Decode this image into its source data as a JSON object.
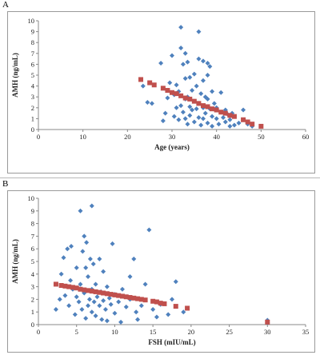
{
  "chart_data": [
    {
      "panel_label": "A",
      "type": "scatter",
      "xlabel": "Age (years)",
      "ylabel": "AMH (ng/mL)",
      "xlim": [
        0,
        60
      ],
      "ylim": [
        0,
        10
      ],
      "x_ticks": [
        0,
        10,
        20,
        30,
        40,
        50,
        60
      ],
      "y_ticks": [
        0,
        1,
        2,
        3,
        4,
        5,
        6,
        7,
        8,
        9,
        10
      ],
      "grid": false,
      "legend": "none",
      "series": [
        {
          "marker": "diamond",
          "color": "#4f81bd",
          "points": [
            [
              23.5,
              4.0
            ],
            [
              24.5,
              2.5
            ],
            [
              25.5,
              2.4
            ],
            [
              27.5,
              6.1
            ],
            [
              28,
              0.8
            ],
            [
              28.5,
              1.5
            ],
            [
              29,
              2.9
            ],
            [
              29.5,
              4.3
            ],
            [
              30,
              6.8
            ],
            [
              30.5,
              3.2
            ],
            [
              30.5,
              1.2
            ],
            [
              31,
              2.0
            ],
            [
              31,
              4.1
            ],
            [
              31.5,
              3.5
            ],
            [
              31.5,
              0.9
            ],
            [
              32,
              9.4
            ],
            [
              32,
              7.5
            ],
            [
              32,
              2.2
            ],
            [
              32.5,
              6.0
            ],
            [
              32.5,
              1.6
            ],
            [
              33,
              7.0
            ],
            [
              33,
              4.7
            ],
            [
              33,
              2.8
            ],
            [
              33,
              1.0
            ],
            [
              33.5,
              6.2
            ],
            [
              33.5,
              3.0
            ],
            [
              33.5,
              0.5
            ],
            [
              34,
              4.8
            ],
            [
              34,
              2.1
            ],
            [
              34,
              1.3
            ],
            [
              34.5,
              3.6
            ],
            [
              34.5,
              1.8
            ],
            [
              35,
              5.1
            ],
            [
              35,
              2.6
            ],
            [
              35,
              0.7
            ],
            [
              35.5,
              4.0
            ],
            [
              35.5,
              1.9
            ],
            [
              36,
              9.0
            ],
            [
              36,
              6.5
            ],
            [
              36,
              2.4
            ],
            [
              36,
              1.1
            ],
            [
              36.5,
              3.3
            ],
            [
              36.5,
              0.4
            ],
            [
              37,
              6.3
            ],
            [
              37,
              4.5
            ],
            [
              37,
              2.0
            ],
            [
              37,
              1.0
            ],
            [
              37.5,
              3.0
            ],
            [
              37.5,
              1.5
            ],
            [
              38,
              6.1
            ],
            [
              38,
              5.0
            ],
            [
              38,
              2.8
            ],
            [
              38,
              0.6
            ],
            [
              38.5,
              5.8
            ],
            [
              38.5,
              1.9
            ],
            [
              39,
              3.5
            ],
            [
              39,
              1.2
            ],
            [
              39,
              0.3
            ],
            [
              39.5,
              2.4
            ],
            [
              40,
              2.0
            ],
            [
              40,
              1.0
            ],
            [
              40.5,
              0.5
            ],
            [
              41,
              3.4
            ],
            [
              41,
              1.6
            ],
            [
              41.5,
              1.1
            ],
            [
              42,
              1.8
            ],
            [
              42,
              0.7
            ],
            [
              42.5,
              1.4
            ],
            [
              43,
              0.9
            ],
            [
              43,
              0.3
            ],
            [
              43.5,
              1.5
            ],
            [
              44,
              1.2
            ],
            [
              44,
              0.4
            ],
            [
              45,
              0.6
            ],
            [
              46,
              1.8
            ],
            [
              47,
              0.5
            ],
            [
              48,
              0.3
            ]
          ]
        },
        {
          "marker": "square",
          "color": "#c0504d",
          "points": [
            [
              23,
              4.6
            ],
            [
              25,
              4.3
            ],
            [
              26,
              4.1
            ],
            [
              28,
              3.8
            ],
            [
              29,
              3.6
            ],
            [
              30,
              3.4
            ],
            [
              31,
              3.3
            ],
            [
              32,
              3.1
            ],
            [
              33,
              2.9
            ],
            [
              34,
              2.8
            ],
            [
              35,
              2.6
            ],
            [
              36,
              2.4
            ],
            [
              37,
              2.2
            ],
            [
              38,
              2.1
            ],
            [
              39,
              1.9
            ],
            [
              40,
              1.8
            ],
            [
              41,
              1.6
            ],
            [
              42,
              1.5
            ],
            [
              43,
              1.3
            ],
            [
              44,
              1.2
            ],
            [
              46,
              0.9
            ],
            [
              47,
              0.7
            ],
            [
              48,
              0.5
            ],
            [
              50,
              0.3
            ]
          ]
        }
      ]
    },
    {
      "panel_label": "B",
      "type": "scatter",
      "xlabel": "FSH (mIU/mL)",
      "ylabel": "AMH (ng/mL)",
      "xlim": [
        0,
        35
      ],
      "ylim": [
        0,
        10
      ],
      "x_ticks": [
        0,
        5,
        10,
        15,
        20,
        25,
        30,
        35
      ],
      "y_ticks": [
        0,
        1,
        2,
        3,
        4,
        5,
        6,
        7,
        8,
        9,
        10
      ],
      "grid": false,
      "legend": "none",
      "series": [
        {
          "marker": "diamond",
          "color": "#4f81bd",
          "points": [
            [
              2.3,
              1.2
            ],
            [
              2.8,
              2.0
            ],
            [
              3.0,
              4.0
            ],
            [
              3.3,
              5.3
            ],
            [
              3.5,
              2.3
            ],
            [
              3.8,
              6.0
            ],
            [
              4.0,
              1.5
            ],
            [
              4.2,
              3.5
            ],
            [
              4.3,
              6.2
            ],
            [
              4.5,
              2.8
            ],
            [
              4.8,
              0.8
            ],
            [
              5.0,
              2.2
            ],
            [
              5.0,
              4.5
            ],
            [
              5.3,
              1.8
            ],
            [
              5.5,
              3.2
            ],
            [
              5.5,
              9.0
            ],
            [
              5.7,
              1.2
            ],
            [
              5.8,
              5.8
            ],
            [
              6.0,
              7.0
            ],
            [
              6.0,
              2.5
            ],
            [
              6.2,
              0.5
            ],
            [
              6.2,
              4.5
            ],
            [
              6.3,
              6.5
            ],
            [
              6.5,
              1.5
            ],
            [
              6.5,
              3.8
            ],
            [
              6.7,
              2.0
            ],
            [
              6.8,
              5.2
            ],
            [
              7.0,
              9.4
            ],
            [
              7.0,
              1.0
            ],
            [
              7.0,
              2.8
            ],
            [
              7.2,
              4.8
            ],
            [
              7.3,
              1.8
            ],
            [
              7.5,
              0.7
            ],
            [
              7.5,
              3.2
            ],
            [
              7.7,
              2.2
            ],
            [
              8.0,
              5.2
            ],
            [
              8.0,
              1.5
            ],
            [
              8.2,
              2.6
            ],
            [
              8.3,
              0.4
            ],
            [
              8.5,
              4.2
            ],
            [
              8.5,
              1.9
            ],
            [
              8.8,
              1.2
            ],
            [
              9.0,
              3.0
            ],
            [
              9.0,
              0.3
            ],
            [
              9.3,
              2.1
            ],
            [
              9.5,
              1.6
            ],
            [
              9.7,
              6.4
            ],
            [
              10.0,
              2.4
            ],
            [
              10.0,
              0.9
            ],
            [
              10.5,
              1.8
            ],
            [
              10.8,
              0.2
            ],
            [
              11.0,
              2.8
            ],
            [
              11.5,
              1.4
            ],
            [
              12.0,
              3.8
            ],
            [
              12.0,
              2.0
            ],
            [
              12.5,
              5.2
            ],
            [
              12.8,
              1.0
            ],
            [
              13.0,
              0.4
            ],
            [
              13.5,
              1.5
            ],
            [
              14.0,
              3.2
            ],
            [
              14.5,
              7.5
            ],
            [
              15.0,
              1.2
            ],
            [
              15.5,
              0.6
            ],
            [
              16.0,
              1.6
            ],
            [
              17.0,
              0.8
            ],
            [
              17.5,
              2.0
            ],
            [
              18.0,
              3.4
            ],
            [
              19.0,
              1.0
            ],
            [
              30.0,
              0.35
            ],
            [
              30.0,
              0.15
            ]
          ]
        },
        {
          "marker": "square",
          "color": "#c0504d",
          "points": [
            [
              2.3,
              3.2
            ],
            [
              3.0,
              3.1
            ],
            [
              3.5,
              3.05
            ],
            [
              4.0,
              3.0
            ],
            [
              4.5,
              2.95
            ],
            [
              5.0,
              2.9
            ],
            [
              5.5,
              2.8
            ],
            [
              6.0,
              2.75
            ],
            [
              6.5,
              2.7
            ],
            [
              7.0,
              2.65
            ],
            [
              7.5,
              2.6
            ],
            [
              8.0,
              2.55
            ],
            [
              8.5,
              2.5
            ],
            [
              9.0,
              2.45
            ],
            [
              9.5,
              2.4
            ],
            [
              10.0,
              2.35
            ],
            [
              10.5,
              2.3
            ],
            [
              11.0,
              2.25
            ],
            [
              11.5,
              2.2
            ],
            [
              12.0,
              2.15
            ],
            [
              12.5,
              2.1
            ],
            [
              13.0,
              2.05
            ],
            [
              13.5,
              2.0
            ],
            [
              14.0,
              1.95
            ],
            [
              15.0,
              1.85
            ],
            [
              15.5,
              1.8
            ],
            [
              16.0,
              1.7
            ],
            [
              16.5,
              1.65
            ],
            [
              18.0,
              1.45
            ],
            [
              19.5,
              1.3
            ],
            [
              30.0,
              0.2
            ]
          ]
        }
      ]
    }
  ]
}
